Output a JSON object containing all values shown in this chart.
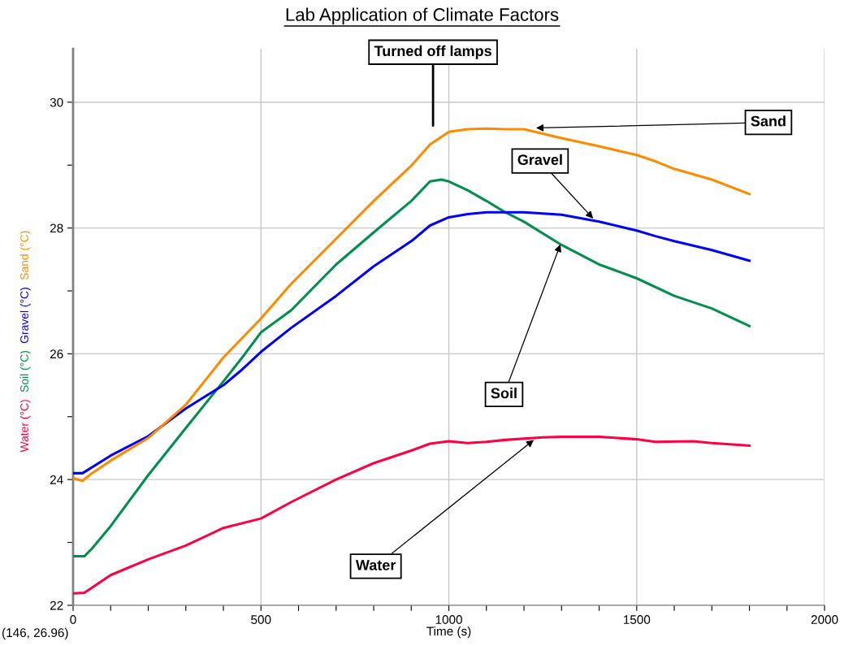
{
  "chart_data": {
    "type": "line",
    "title": "Lab Application of Climate Factors",
    "xlabel": "Time (s)",
    "xlim": [
      0,
      2000
    ],
    "ylim": [
      22,
      30.85
    ],
    "xticks": [
      0,
      {
        "value": 100,
        "label": null
      },
      {
        "value": 200,
        "label": null
      },
      {
        "value": 300,
        "label": null
      },
      {
        "value": 400,
        "label": null
      },
      500,
      {
        "value": 600,
        "label": null
      },
      {
        "value": 700,
        "label": null
      },
      {
        "value": 800,
        "label": null
      },
      {
        "value": 900,
        "label": null
      },
      1000,
      {
        "value": 1100,
        "label": null
      },
      {
        "value": 1200,
        "label": null
      },
      {
        "value": 1300,
        "label": null
      },
      {
        "value": 1400,
        "label": null
      },
      1500,
      {
        "value": 1600,
        "label": null
      },
      {
        "value": 1700,
        "label": null
      },
      {
        "value": 1800,
        "label": null
      },
      {
        "value": 1900,
        "label": null
      },
      2000
    ],
    "yticks": [
      22,
      {
        "value": 23,
        "label": null
      },
      24,
      {
        "value": 25,
        "label": null
      },
      26,
      {
        "value": 27,
        "label": null
      },
      28,
      {
        "value": 29,
        "label": null
      },
      30
    ],
    "grid": true,
    "legend": false,
    "marker": "none",
    "line_style": "solid",
    "series": [
      {
        "name": "Water (°C)",
        "color": "#ff0040",
        "x": [
          0,
          30,
          100,
          200,
          300,
          400,
          500,
          580,
          700,
          800,
          900,
          950,
          1000,
          1050,
          1100,
          1150,
          1250,
          1300,
          1400,
          1500,
          1550,
          1650,
          1700,
          1800
        ],
        "values": [
          22.19,
          22.2,
          22.48,
          22.73,
          22.95,
          23.23,
          23.38,
          23.64,
          24.0,
          24.26,
          24.46,
          24.57,
          24.61,
          24.58,
          24.6,
          24.63,
          24.67,
          24.68,
          24.68,
          24.64,
          24.6,
          24.61,
          24.58,
          24.54
        ]
      },
      {
        "name": "Soil (°C)",
        "color": "#008f4c",
        "x": [
          0,
          30,
          50,
          100,
          200,
          300,
          400,
          450,
          500,
          580,
          700,
          800,
          900,
          950,
          980,
          1000,
          1050,
          1100,
          1150,
          1200,
          1300,
          1400,
          1500,
          1600,
          1700,
          1800
        ],
        "values": [
          22.78,
          22.78,
          22.9,
          23.26,
          24.07,
          24.82,
          25.56,
          25.94,
          26.34,
          26.69,
          27.42,
          27.93,
          28.43,
          28.74,
          28.77,
          28.74,
          28.6,
          28.43,
          28.25,
          28.1,
          27.73,
          27.42,
          27.2,
          26.92,
          26.72,
          26.44
        ]
      },
      {
        "name": "Gravel (°C)",
        "color": "#0000ff",
        "x": [
          0,
          25,
          100,
          200,
          300,
          400,
          450,
          500,
          580,
          700,
          800,
          900,
          950,
          1000,
          1050,
          1100,
          1200,
          1300,
          1400,
          1500,
          1550,
          1600,
          1700,
          1800
        ],
        "values": [
          24.1,
          24.1,
          24.38,
          24.69,
          25.13,
          25.5,
          25.75,
          26.03,
          26.41,
          26.92,
          27.39,
          27.79,
          28.04,
          28.17,
          28.22,
          28.25,
          28.25,
          28.21,
          28.1,
          27.96,
          27.87,
          27.79,
          27.65,
          27.48
        ]
      },
      {
        "name": "Sand (°C)",
        "color": "#ff8a00",
        "x": [
          0,
          25,
          50,
          100,
          200,
          300,
          400,
          500,
          580,
          700,
          800,
          900,
          950,
          1000,
          1050,
          1100,
          1150,
          1200,
          1250,
          1300,
          1400,
          1500,
          1550,
          1600,
          1700,
          1800
        ],
        "values": [
          24.02,
          23.98,
          24.1,
          24.3,
          24.66,
          25.19,
          25.94,
          26.56,
          27.11,
          27.83,
          28.43,
          28.99,
          29.33,
          29.53,
          29.57,
          29.58,
          29.57,
          29.57,
          29.5,
          29.43,
          29.3,
          29.16,
          29.06,
          28.94,
          28.77,
          28.54
        ]
      }
    ],
    "annotations": [
      "Turned off lamps",
      {
        "text": "Sand",
        "x": 1232,
        "y": 29.59
      },
      {
        "text": "Gravel",
        "x": 1384,
        "y": 28.15
      },
      {
        "text": "Soil",
        "x": 1297,
        "y": 27.74
      },
      {
        "text": "Water",
        "x": 1226,
        "y": 24.63
      },
      "(146, 26.96)"
    ]
  }
}
